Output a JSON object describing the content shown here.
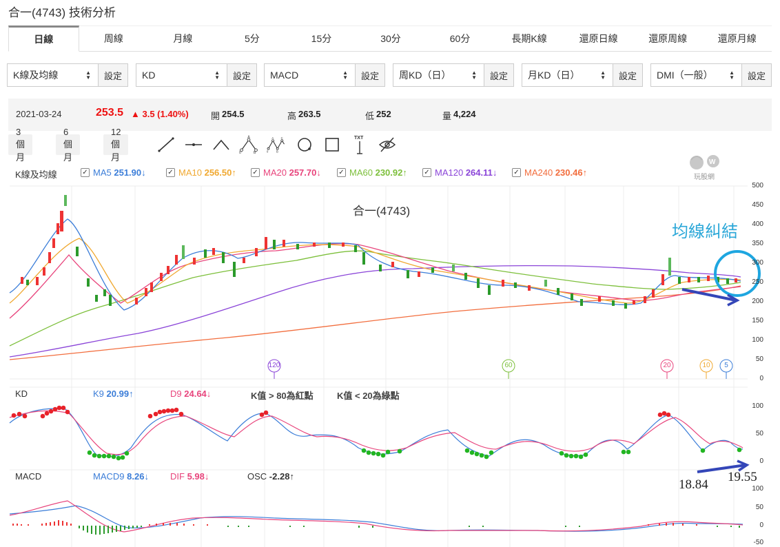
{
  "header": {
    "title": "合一(4743) 技術分析"
  },
  "tabs": [
    {
      "label": "日線",
      "active": true
    },
    {
      "label": "周線"
    },
    {
      "label": "月線"
    },
    {
      "label": "5分"
    },
    {
      "label": "15分"
    },
    {
      "label": "30分"
    },
    {
      "label": "60分"
    },
    {
      "label": "長期K線"
    },
    {
      "label": "還原日線"
    },
    {
      "label": "還原周線"
    },
    {
      "label": "還原月線"
    }
  ],
  "selects": [
    {
      "value": "K線及均線",
      "btn": "設定"
    },
    {
      "value": "KD",
      "btn": "設定"
    },
    {
      "value": "MACD",
      "btn": "設定"
    },
    {
      "value": "周KD（日）",
      "btn": "設定"
    },
    {
      "value": "月KD（日）",
      "btn": "設定"
    },
    {
      "value": "DMI（一般）",
      "btn": "設定"
    }
  ],
  "quote": {
    "date": "2021-03-24",
    "price": "253.5",
    "change": "▲ 3.5 (1.40%)",
    "open_label": "開",
    "open": "254.5",
    "high_label": "高",
    "high": "263.5",
    "low_label": "低",
    "low": "252",
    "vol_label": "量",
    "volume": "4,224"
  },
  "ranges": [
    "3 個月",
    "6 個月",
    "12 個月"
  ],
  "tools": [
    "line-tool-icon",
    "horizontal-line-tool-icon",
    "triangle-tool-icon",
    "abc-pattern-tool-icon",
    "abcd-pattern-tool-icon",
    "circle-tool-icon",
    "rectangle-tool-icon",
    "text-tool-icon",
    "hide-eye-icon"
  ],
  "ma_legend": {
    "label": "K線及均線",
    "items": [
      {
        "name": "MA5",
        "value": "251.90",
        "arrow": "↓",
        "color": "#3b7dd8"
      },
      {
        "name": "MA10",
        "value": "256.50",
        "arrow": "↑",
        "color": "#f0a830"
      },
      {
        "name": "MA20",
        "value": "257.70",
        "arrow": "↓",
        "color": "#e8447c"
      },
      {
        "name": "MA60",
        "value": "230.92",
        "arrow": "↑",
        "color": "#7cbf3a"
      },
      {
        "name": "MA120",
        "value": "264.11",
        "arrow": "↓",
        "color": "#8a44d8"
      },
      {
        "name": "MA240",
        "value": "230.46",
        "arrow": "↑",
        "color": "#f26d3d"
      }
    ]
  },
  "main_chart": {
    "title": "合一(4743)",
    "yticks": [
      "500",
      "450",
      "400",
      "350",
      "300",
      "250",
      "200",
      "150",
      "100",
      "50",
      "0"
    ],
    "markers": [
      {
        "label": "120",
        "color": "#8a44d8"
      },
      {
        "label": "60",
        "color": "#7cbf3a"
      },
      {
        "label": "20",
        "color": "#e8447c"
      },
      {
        "label": "10",
        "color": "#f0a830"
      },
      {
        "label": "5",
        "color": "#3b7dd8"
      }
    ],
    "annotation": "均線糾結"
  },
  "kd_legend": {
    "label": "KD",
    "k_name": "K9",
    "k_value": "20.99",
    "k_arrow": "↑",
    "d_name": "D9",
    "d_value": "24.64",
    "d_arrow": "↓",
    "note1": "K值 > 80為紅點",
    "note2": "K值 < 20為綠點",
    "yticks": [
      "100",
      "50",
      "0"
    ],
    "hand_left": "18.84",
    "hand_right": "19.55"
  },
  "macd_legend": {
    "label": "MACD",
    "macd_name": "MACD9",
    "macd_value": "8.26",
    "macd_arrow": "↓",
    "dif_name": "DIF",
    "dif_value": "5.98",
    "dif_arrow": "↓",
    "osc_name": "OSC",
    "osc_value": "-2.28",
    "osc_arrow": "↑",
    "yticks": [
      "100",
      "50",
      "0",
      "-50"
    ]
  },
  "logo_text": "玩股網"
}
